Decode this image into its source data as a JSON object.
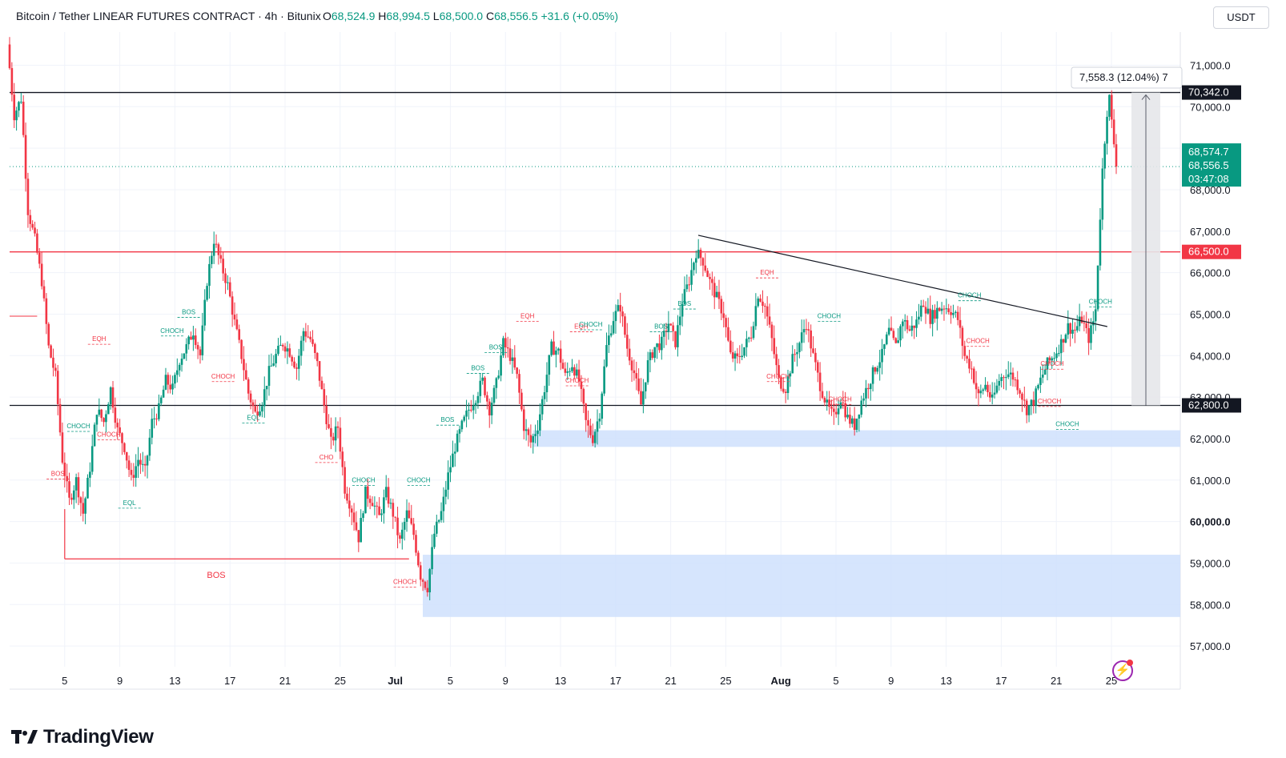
{
  "header": {
    "title": "Bitcoin / Tether LINEAR FUTURES CONTRACT · 4h · Bitunix",
    "o_label": "O",
    "o_value": "68,524.9",
    "h_label": "H",
    "h_value": "68,994.5",
    "l_label": "L",
    "l_value": "68,500.0",
    "c_label": "C",
    "c_value": "68,556.5",
    "change": "+31.6 (+0.05%)"
  },
  "currency": "USDT",
  "brand": "TradingView",
  "colors": {
    "up": "#089981",
    "down": "#f23645",
    "zone": "#cfe0fd",
    "accent": "#9c27b0"
  },
  "chart_data": {
    "type": "candlestick",
    "symbol": "Bitcoin / Tether LINEAR FUTURES CONTRACT",
    "interval": "4h",
    "exchange": "Bitunix",
    "ylim": [
      56500,
      71800
    ],
    "y_ticks": [
      "71,000.0",
      "70,000.0",
      "69,000.0",
      "68,000.0",
      "67,000.0",
      "66,000.0",
      "65,000.0",
      "64,000.0",
      "63,000.0",
      "62,000.0",
      "61,000.0",
      "60,000.0",
      "59,000.0",
      "58,000.0",
      "57,000.0"
    ],
    "y_tick_values": [
      71000,
      70000,
      69000,
      68000,
      67000,
      66000,
      65000,
      64000,
      63000,
      62000,
      61000,
      60000,
      59000,
      58000,
      57000
    ],
    "x_ticks": [
      "5",
      "9",
      "13",
      "17",
      "21",
      "25",
      "Jul",
      "5",
      "9",
      "13",
      "17",
      "21",
      "25",
      "Aug",
      "5",
      "9",
      "13",
      "17",
      "21",
      "25"
    ],
    "price_path": [
      [
        0,
        71500
      ],
      [
        0.5,
        69800
      ],
      [
        1,
        70200
      ],
      [
        1.5,
        67500
      ],
      [
        2,
        66800
      ],
      [
        2.5,
        65800
      ],
      [
        3,
        64200
      ],
      [
        3.5,
        63500
      ],
      [
        4,
        61500
      ],
      [
        4.5,
        60500
      ],
      [
        5,
        61000
      ],
      [
        5.5,
        60200
      ],
      [
        6,
        61300
      ],
      [
        6.5,
        62700
      ],
      [
        7,
        62400
      ],
      [
        7.5,
        63200
      ],
      [
        8,
        62200
      ],
      [
        8.5,
        61800
      ],
      [
        9,
        61000
      ],
      [
        9.5,
        61500
      ],
      [
        10,
        61200
      ],
      [
        10.5,
        62400
      ],
      [
        11,
        62700
      ],
      [
        11.5,
        63400
      ],
      [
        12,
        63200
      ],
      [
        12.5,
        63900
      ],
      [
        13,
        64200
      ],
      [
        13.5,
        64600
      ],
      [
        14,
        64000
      ],
      [
        14.5,
        65800
      ],
      [
        15,
        66800
      ],
      [
        15.5,
        66200
      ],
      [
        16,
        65700
      ],
      [
        16.5,
        64800
      ],
      [
        17,
        64000
      ],
      [
        17.5,
        63100
      ],
      [
        18,
        62600
      ],
      [
        18.5,
        62900
      ],
      [
        19,
        63600
      ],
      [
        19.5,
        64000
      ],
      [
        20,
        64300
      ],
      [
        20.5,
        64100
      ],
      [
        21,
        63700
      ],
      [
        21.5,
        64600
      ],
      [
        22,
        64400
      ],
      [
        22.5,
        63800
      ],
      [
        23,
        62800
      ],
      [
        23.5,
        61900
      ],
      [
        24,
        62300
      ],
      [
        24.5,
        60800
      ],
      [
        25,
        60300
      ],
      [
        25.5,
        59600
      ],
      [
        26,
        60700
      ],
      [
        26.5,
        60500
      ],
      [
        27,
        60100
      ],
      [
        27.5,
        60700
      ],
      [
        28,
        60200
      ],
      [
        28.5,
        59500
      ],
      [
        29,
        60200
      ],
      [
        29.5,
        59700
      ],
      [
        30,
        58700
      ],
      [
        30.5,
        58400
      ],
      [
        31,
        59700
      ],
      [
        31.5,
        60200
      ],
      [
        32,
        61100
      ],
      [
        32.5,
        61800
      ],
      [
        33,
        62300
      ],
      [
        33.5,
        62700
      ],
      [
        34,
        63000
      ],
      [
        34.5,
        63400
      ],
      [
        35,
        62700
      ],
      [
        35.5,
        63300
      ],
      [
        36,
        64300
      ],
      [
        36.5,
        64000
      ],
      [
        37,
        63500
      ],
      [
        37.5,
        62300
      ],
      [
        38,
        61900
      ],
      [
        38.5,
        62300
      ],
      [
        39,
        63200
      ],
      [
        39.5,
        64200
      ],
      [
        40,
        64100
      ],
      [
        40.5,
        63500
      ],
      [
        41,
        63800
      ],
      [
        41.5,
        63400
      ],
      [
        42,
        62400
      ],
      [
        42.5,
        62000
      ],
      [
        43,
        62600
      ],
      [
        43.5,
        64200
      ],
      [
        44,
        64900
      ],
      [
        44.5,
        65200
      ],
      [
        45,
        64200
      ],
      [
        45.5,
        63600
      ],
      [
        46,
        62800
      ],
      [
        46.5,
        63800
      ],
      [
        47,
        64200
      ],
      [
        47.5,
        64300
      ],
      [
        48,
        64800
      ],
      [
        48.5,
        64300
      ],
      [
        49,
        65300
      ],
      [
        49.5,
        65800
      ],
      [
        50,
        66500
      ],
      [
        50.5,
        66300
      ],
      [
        51,
        65800
      ],
      [
        51.5,
        65400
      ],
      [
        52,
        65000
      ],
      [
        52.5,
        64000
      ],
      [
        53,
        63900
      ],
      [
        53.5,
        64200
      ],
      [
        54,
        64500
      ],
      [
        54.5,
        65500
      ],
      [
        55,
        65200
      ],
      [
        55.5,
        64400
      ],
      [
        56,
        63400
      ],
      [
        56.5,
        63200
      ],
      [
        57,
        63900
      ],
      [
        57.5,
        64300
      ],
      [
        58,
        64800
      ],
      [
        58.5,
        64000
      ],
      [
        59,
        63300
      ],
      [
        59.5,
        62800
      ],
      [
        60,
        62500
      ],
      [
        60.5,
        63000
      ],
      [
        61,
        62500
      ],
      [
        61.5,
        62300
      ],
      [
        62,
        62900
      ],
      [
        62.5,
        63300
      ],
      [
        63,
        63700
      ],
      [
        63.5,
        64000
      ],
      [
        64,
        64600
      ],
      [
        64.5,
        64200
      ],
      [
        65,
        64900
      ],
      [
        65.5,
        64600
      ],
      [
        66,
        64800
      ],
      [
        66.5,
        65300
      ],
      [
        67,
        64900
      ],
      [
        67.5,
        65100
      ],
      [
        68,
        65200
      ],
      [
        68.5,
        65100
      ],
      [
        69,
        64900
      ],
      [
        69.5,
        64000
      ],
      [
        70,
        63700
      ],
      [
        70.5,
        63000
      ],
      [
        71,
        63300
      ],
      [
        71.5,
        62900
      ],
      [
        72,
        63400
      ],
      [
        72.5,
        63600
      ],
      [
        73,
        63500
      ],
      [
        73.5,
        63200
      ],
      [
        74,
        62700
      ],
      [
        74.5,
        62900
      ],
      [
        75,
        63400
      ],
      [
        75.5,
        63800
      ],
      [
        76,
        64000
      ],
      [
        76.5,
        64300
      ],
      [
        77,
        64700
      ],
      [
        77.5,
        64600
      ],
      [
        78,
        64900
      ],
      [
        78.5,
        64400
      ],
      [
        79,
        65000
      ],
      [
        79.5,
        68400
      ],
      [
        80,
        70342
      ],
      [
        80.5,
        68557
      ]
    ],
    "horizontal_levels": [
      {
        "value": 70342.0,
        "label": "70,342.0",
        "color": "#131722",
        "style": "solid"
      },
      {
        "value": 66500.0,
        "label": "66,500.0",
        "color": "#f23645",
        "style": "solid"
      },
      {
        "value": 62800.0,
        "label": "62,800.0",
        "color": "#131722",
        "style": "solid"
      }
    ],
    "current_price": {
      "value": 68556.5,
      "label": "68,556.5"
    },
    "price_labels": [
      "68,574.7",
      "68,556.5",
      "03:47:08"
    ],
    "trendline": {
      "from": [
        50,
        66900
      ],
      "to": [
        79.7,
        64700
      ]
    },
    "zones": [
      {
        "from_x": 38,
        "y_low": 61800,
        "y_high": 62200
      },
      {
        "from_x": 30,
        "y_low": 57700,
        "y_high": 59200
      }
    ],
    "measure_label": "7,558.3 (12.04%) 7",
    "bos_level": {
      "x_from": 4,
      "x_to": 29,
      "value": 59100,
      "label": "BOS"
    },
    "annotations": [
      {
        "text": "EQH",
        "x": 6.5,
        "y": 64350,
        "color": "down"
      },
      {
        "text": "CHOCH",
        "x": 5,
        "y": 62250,
        "color": "up"
      },
      {
        "text": "CHOCH",
        "x": 7.2,
        "y": 62050,
        "color": "down"
      },
      {
        "text": "BOS",
        "x": 3.5,
        "y": 61100,
        "color": "down"
      },
      {
        "text": "EQL",
        "x": 8.7,
        "y": 60400,
        "color": "up"
      },
      {
        "text": "BOS",
        "x": 13,
        "y": 65000,
        "color": "up"
      },
      {
        "text": "CHOCH",
        "x": 11.8,
        "y": 64550,
        "color": "up"
      },
      {
        "text": "CHOCH",
        "x": 15.5,
        "y": 63450,
        "color": "down"
      },
      {
        "text": "EQL",
        "x": 17.7,
        "y": 62450,
        "color": "up"
      },
      {
        "text": "CHO",
        "x": 23,
        "y": 61500,
        "color": "down"
      },
      {
        "text": "CHOCH",
        "x": 25.7,
        "y": 60950,
        "color": "up"
      },
      {
        "text": "CHOCH",
        "x": 29.7,
        "y": 60950,
        "color": "up"
      },
      {
        "text": "CHOCH",
        "x": 28.7,
        "y": 58500,
        "color": "down"
      },
      {
        "text": "BOS",
        "x": 31.8,
        "y": 62400,
        "color": "up"
      },
      {
        "text": "BOS",
        "x": 34,
        "y": 63650,
        "color": "up"
      },
      {
        "text": "BOS",
        "x": 35.3,
        "y": 64150,
        "color": "up"
      },
      {
        "text": "EQH",
        "x": 37.6,
        "y": 64900,
        "color": "down"
      },
      {
        "text": "EQH",
        "x": 41.5,
        "y": 64650,
        "color": "down"
      },
      {
        "text": "CHOCH",
        "x": 42.2,
        "y": 64700,
        "color": "up"
      },
      {
        "text": "CHOCH",
        "x": 41.2,
        "y": 63350,
        "color": "down"
      },
      {
        "text": "BOS",
        "x": 47.3,
        "y": 64650,
        "color": "up"
      },
      {
        "text": "BOS",
        "x": 49,
        "y": 65200,
        "color": "up"
      },
      {
        "text": "EQH",
        "x": 55,
        "y": 65950,
        "color": "down"
      },
      {
        "text": "CHOCH",
        "x": 55.8,
        "y": 63450,
        "color": "down"
      },
      {
        "text": "CHOCH",
        "x": 59.5,
        "y": 64900,
        "color": "up"
      },
      {
        "text": "CHOCH",
        "x": 60.3,
        "y": 62900,
        "color": "down"
      },
      {
        "text": "CHOCH",
        "x": 69.7,
        "y": 65400,
        "color": "up"
      },
      {
        "text": "CHOCH",
        "x": 70.3,
        "y": 64300,
        "color": "down"
      },
      {
        "text": "CHOCH",
        "x": 75.7,
        "y": 63750,
        "color": "down"
      },
      {
        "text": "CHOCH",
        "x": 75.5,
        "y": 62850,
        "color": "down"
      },
      {
        "text": "CHOCH",
        "x": 76.8,
        "y": 62300,
        "color": "up"
      },
      {
        "text": "CHOCH",
        "x": 79.2,
        "y": 65250,
        "color": "up"
      }
    ]
  }
}
